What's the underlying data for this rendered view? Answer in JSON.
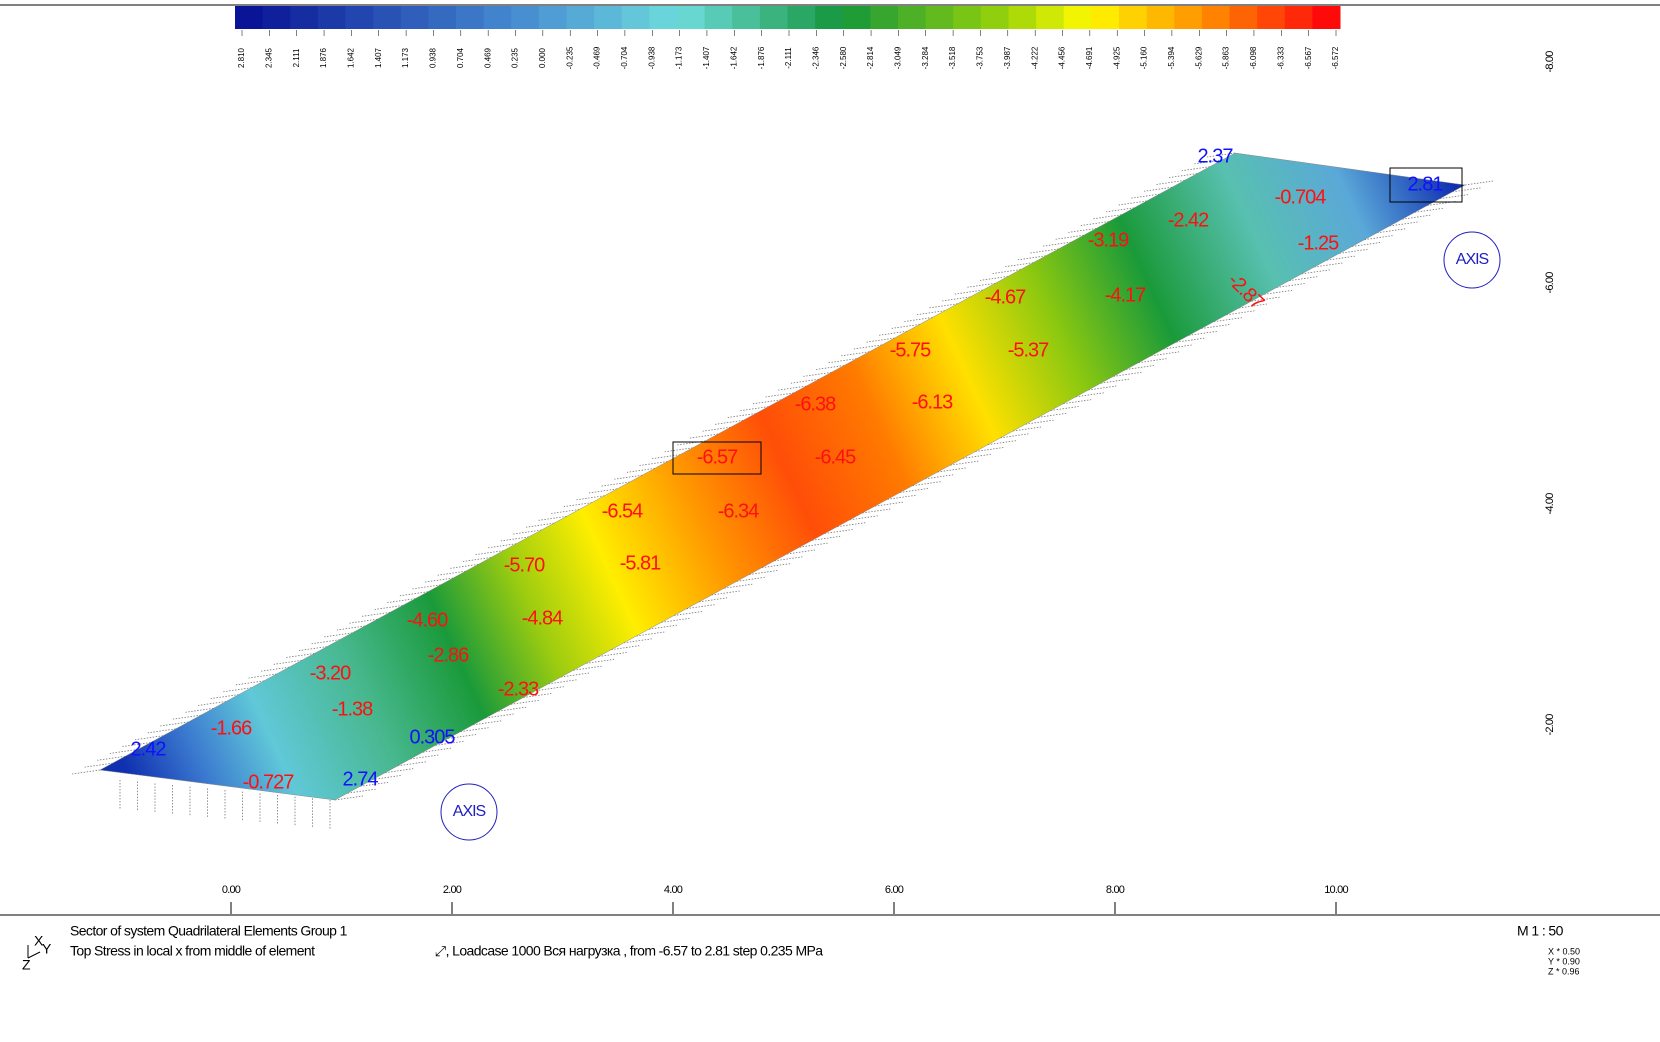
{
  "colorbar": {
    "labels": [
      "2.810",
      "2.345",
      "2.111",
      "1.876",
      "1.642",
      "1.407",
      "1.173",
      "0.938",
      "0.704",
      "0.469",
      "0.235",
      "0.000",
      "-0.235",
      "-0.469",
      "-0.704",
      "-0.938",
      "-1.173",
      "-1.407",
      "-1.642",
      "-1.876",
      "-2.111",
      "-2.346",
      "-2.580",
      "-2.814",
      "-3.049",
      "-3.284",
      "-3.518",
      "-3.753",
      "-3.987",
      "-4.222",
      "-4.456",
      "-4.691",
      "-4.925",
      "-5.160",
      "-5.394",
      "-5.629",
      "-5.863",
      "-6.098",
      "-6.333",
      "-6.567",
      "-6.572"
    ]
  },
  "contour_labels": [
    "2.37",
    "-0.704",
    "2.81",
    "-2.42",
    "-1.25",
    "-3.19",
    "-4.67",
    "-4.17",
    "-2.87",
    "-5.75",
    "-5.37",
    "-6.38",
    "-6.13",
    "-6.57",
    "-6.45",
    "-6.54",
    "-6.34",
    "-5.70",
    "-5.81",
    "-4.60",
    "-4.84",
    "-2.86",
    "-3.20",
    "-2.33",
    "-1.38",
    "-1.66",
    "0.305",
    "2.42",
    "-0.727",
    "2.74"
  ],
  "x_axis": {
    "ticks": [
      "0.00",
      "2.00",
      "4.00",
      "6.00",
      "8.00",
      "10.00"
    ]
  },
  "y_axis": {
    "ticks": [
      "-8.00",
      "-6.00",
      "-4.00",
      "-2.00"
    ]
  },
  "axis_markers": [
    "AXIS",
    "AXIS"
  ],
  "axis_icon": [
    "X",
    "Y",
    "Z"
  ],
  "footer": {
    "sector": "Sector of system Quadrilateral Elements Group 1",
    "stress": "Top Stress in local x from middle of element",
    "loadcase": "⤢, Loadcase 1000 Вся нагрузка   , from -6.57 to 2.81 step 0.235 MPa",
    "scale": "M 1 : 50",
    "factors": [
      "X * 0.50",
      "Y * 0.90",
      "Z * 0.96"
    ]
  }
}
